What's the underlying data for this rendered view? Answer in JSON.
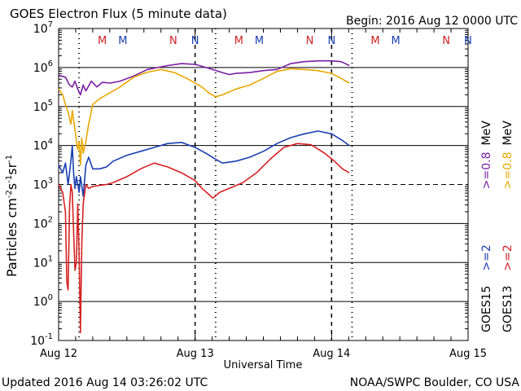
{
  "chart_data": {
    "type": "line",
    "title": "GOES Electron Flux (5 minute data)",
    "begin_label": "Begin: 2016 Aug 12 0000 UTC",
    "xlabel": "Universal Time",
    "ylabel_parts": {
      "a": "Particles cm",
      "b": "-2",
      "c": "s",
      "d": "-1",
      "e": "sr",
      "f": "-1"
    },
    "x_ticks": [
      "Aug 12",
      "Aug 13",
      "Aug 14",
      "Aug 15"
    ],
    "xlim_days": [
      0,
      3
    ],
    "ylim_log10": [
      -1,
      7
    ],
    "y_ticks": [
      {
        "exp": 7,
        "base": "10",
        "sup": "7"
      },
      {
        "exp": 6,
        "base": "10",
        "sup": "6"
      },
      {
        "exp": 5,
        "base": "10",
        "sup": "5"
      },
      {
        "exp": 4,
        "base": "10",
        "sup": "4"
      },
      {
        "exp": 3,
        "base": "10",
        "sup": "3"
      },
      {
        "exp": 2,
        "base": "10",
        "sup": "2"
      },
      {
        "exp": 1,
        "base": "10",
        "sup": "1"
      },
      {
        "exp": 0,
        "base": "10",
        "sup": "0"
      },
      {
        "exp": -1,
        "base": "10",
        "sup": "-1"
      }
    ],
    "threshold_log10": 3,
    "mn_markers": [
      {
        "label": "M",
        "day": 0.32,
        "color": "#cc2222"
      },
      {
        "label": "M",
        "day": 0.47,
        "color": "#1a3fb0"
      },
      {
        "label": "N",
        "day": 0.84,
        "color": "#cc2222"
      },
      {
        "label": "N",
        "day": 1.0,
        "color": "#1a3fb0"
      },
      {
        "label": "M",
        "day": 1.32,
        "color": "#cc2222"
      },
      {
        "label": "M",
        "day": 1.47,
        "color": "#1a3fb0"
      },
      {
        "label": "N",
        "day": 1.84,
        "color": "#cc2222"
      },
      {
        "label": "N",
        "day": 2.0,
        "color": "#1a3fb0"
      },
      {
        "label": "M",
        "day": 2.32,
        "color": "#cc2222"
      },
      {
        "label": "M",
        "day": 2.47,
        "color": "#1a3fb0"
      },
      {
        "label": "N",
        "day": 2.84,
        "color": "#cc2222"
      },
      {
        "label": "N",
        "day": 3.0,
        "color": "#1a3fb0"
      }
    ],
    "dashed_days": [
      1.0,
      2.0
    ],
    "dotted_days": [
      0.15,
      1.15,
      2.15
    ],
    "series": [
      {
        "name": ">=0.8 MeV",
        "color": "#7a1fa2",
        "points": [
          [
            0.0,
            5.8
          ],
          [
            0.05,
            5.75
          ],
          [
            0.08,
            5.55
          ],
          [
            0.1,
            5.5
          ],
          [
            0.12,
            5.65
          ],
          [
            0.14,
            5.45
          ],
          [
            0.16,
            5.3
          ],
          [
            0.18,
            5.55
          ],
          [
            0.2,
            5.4
          ],
          [
            0.24,
            5.65
          ],
          [
            0.28,
            5.5
          ],
          [
            0.32,
            5.62
          ],
          [
            0.38,
            5.6
          ],
          [
            0.45,
            5.65
          ],
          [
            0.55,
            5.78
          ],
          [
            0.65,
            5.95
          ],
          [
            0.8,
            6.05
          ],
          [
            0.9,
            6.1
          ],
          [
            1.0,
            6.08
          ],
          [
            1.1,
            5.98
          ],
          [
            1.2,
            5.87
          ],
          [
            1.25,
            5.82
          ],
          [
            1.3,
            5.85
          ],
          [
            1.4,
            5.87
          ],
          [
            1.5,
            5.92
          ],
          [
            1.6,
            5.95
          ],
          [
            1.7,
            6.1
          ],
          [
            1.8,
            6.15
          ],
          [
            1.9,
            6.17
          ],
          [
            2.0,
            6.17
          ],
          [
            2.07,
            6.15
          ],
          [
            2.13,
            6.05
          ]
        ]
      },
      {
        "name": ">=0.8 MeV",
        "color": "#e8a800",
        "points": [
          [
            0.0,
            5.45
          ],
          [
            0.03,
            5.3
          ],
          [
            0.05,
            5.05
          ],
          [
            0.07,
            4.85
          ],
          [
            0.09,
            4.55
          ],
          [
            0.1,
            4.9
          ],
          [
            0.12,
            4.4
          ],
          [
            0.14,
            3.9
          ],
          [
            0.15,
            4.1
          ],
          [
            0.16,
            3.5
          ],
          [
            0.17,
            4.2
          ],
          [
            0.18,
            3.8
          ],
          [
            0.2,
            4.1
          ],
          [
            0.22,
            4.55
          ],
          [
            0.25,
            5.05
          ],
          [
            0.3,
            5.2
          ],
          [
            0.35,
            5.3
          ],
          [
            0.45,
            5.5
          ],
          [
            0.55,
            5.75
          ],
          [
            0.65,
            5.88
          ],
          [
            0.75,
            5.95
          ],
          [
            0.85,
            5.87
          ],
          [
            0.95,
            5.7
          ],
          [
            1.05,
            5.5
          ],
          [
            1.1,
            5.35
          ],
          [
            1.15,
            5.25
          ],
          [
            1.2,
            5.3
          ],
          [
            1.3,
            5.45
          ],
          [
            1.4,
            5.55
          ],
          [
            1.5,
            5.72
          ],
          [
            1.6,
            5.9
          ],
          [
            1.7,
            5.97
          ],
          [
            1.8,
            5.95
          ],
          [
            1.9,
            5.92
          ],
          [
            2.0,
            5.85
          ],
          [
            2.07,
            5.72
          ],
          [
            2.13,
            5.6
          ]
        ]
      },
      {
        "name": ">=2 MeV",
        "color": "#1a3fb0",
        "points": [
          [
            0.0,
            3.5
          ],
          [
            0.03,
            3.3
          ],
          [
            0.05,
            3.55
          ],
          [
            0.07,
            3.0
          ],
          [
            0.09,
            3.6
          ],
          [
            0.1,
            4.0
          ],
          [
            0.11,
            3.3
          ],
          [
            0.12,
            2.9
          ],
          [
            0.13,
            3.2
          ],
          [
            0.15,
            2.8
          ],
          [
            0.16,
            3.2
          ],
          [
            0.18,
            2.7
          ],
          [
            0.2,
            3.5
          ],
          [
            0.22,
            3.7
          ],
          [
            0.25,
            3.4
          ],
          [
            0.3,
            3.4
          ],
          [
            0.35,
            3.45
          ],
          [
            0.4,
            3.6
          ],
          [
            0.5,
            3.75
          ],
          [
            0.6,
            3.85
          ],
          [
            0.7,
            3.95
          ],
          [
            0.8,
            4.05
          ],
          [
            0.9,
            4.08
          ],
          [
            1.0,
            3.95
          ],
          [
            1.08,
            3.8
          ],
          [
            1.15,
            3.65
          ],
          [
            1.2,
            3.55
          ],
          [
            1.3,
            3.6
          ],
          [
            1.4,
            3.7
          ],
          [
            1.5,
            3.85
          ],
          [
            1.6,
            4.05
          ],
          [
            1.7,
            4.2
          ],
          [
            1.8,
            4.3
          ],
          [
            1.9,
            4.37
          ],
          [
            2.0,
            4.3
          ],
          [
            2.07,
            4.15
          ],
          [
            2.13,
            4.0
          ]
        ]
      },
      {
        "name": ">=2 MeV",
        "color": "#d62020",
        "points": [
          [
            0.0,
            3.0
          ],
          [
            0.03,
            2.8
          ],
          [
            0.05,
            2.3
          ],
          [
            0.06,
            0.5
          ],
          [
            0.07,
            0.3
          ],
          [
            0.08,
            2.4
          ],
          [
            0.09,
            3.0
          ],
          [
            0.1,
            2.8
          ],
          [
            0.11,
            1.8
          ],
          [
            0.12,
            0.8
          ],
          [
            0.13,
            1.0
          ],
          [
            0.14,
            2.5
          ],
          [
            0.15,
            1.2
          ],
          [
            0.16,
            -0.8
          ],
          [
            0.17,
            1.5
          ],
          [
            0.18,
            2.5
          ],
          [
            0.2,
            3.0
          ],
          [
            0.22,
            2.9
          ],
          [
            0.25,
            2.95
          ],
          [
            0.3,
            2.98
          ],
          [
            0.35,
            3.0
          ],
          [
            0.4,
            3.05
          ],
          [
            0.5,
            3.2
          ],
          [
            0.6,
            3.4
          ],
          [
            0.7,
            3.55
          ],
          [
            0.8,
            3.45
          ],
          [
            0.9,
            3.3
          ],
          [
            1.0,
            3.1
          ],
          [
            1.05,
            2.9
          ],
          [
            1.1,
            2.75
          ],
          [
            1.13,
            2.65
          ],
          [
            1.18,
            2.8
          ],
          [
            1.25,
            2.9
          ],
          [
            1.35,
            3.05
          ],
          [
            1.45,
            3.3
          ],
          [
            1.55,
            3.65
          ],
          [
            1.65,
            3.95
          ],
          [
            1.75,
            4.05
          ],
          [
            1.85,
            4.02
          ],
          [
            1.95,
            3.8
          ],
          [
            2.02,
            3.6
          ],
          [
            2.08,
            3.4
          ],
          [
            2.13,
            3.3
          ]
        ]
      }
    ],
    "side_labels": {
      "goes13": "GOES13",
      "goes15": "GOES15",
      "red_2": ">=2",
      "red_08": ">=0.8",
      "blue_2": ">=2",
      "purple_08": ">=0.8",
      "mev": "MeV"
    }
  },
  "footer": {
    "updated": "Updated 2016 Aug 14 03:26:02 UTC",
    "credit": "NOAA/SWPC Boulder, CO USA"
  }
}
